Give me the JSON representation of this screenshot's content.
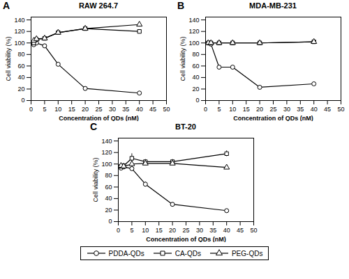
{
  "chart_data": [
    {
      "type": "line",
      "title": "RAW 264.7",
      "annotations": [
        "A"
      ],
      "x": [
        1,
        2,
        5,
        10,
        20,
        40
      ],
      "series": [
        {
          "name": "PDDA-QDs",
          "color": "black",
          "marker": "circle",
          "values": [
            97,
            100,
            95,
            63,
            21,
            13
          ],
          "errors": [
            3,
            2,
            3,
            3,
            2,
            1
          ]
        },
        {
          "name": "CA-QDs",
          "color": "black",
          "marker": "square",
          "values": [
            100,
            106,
            108,
            118,
            125,
            120
          ],
          "errors": [
            2,
            3,
            3,
            4,
            3,
            3
          ]
        },
        {
          "name": "PEG-QDs",
          "color": "black",
          "marker": "triangle",
          "values": [
            104,
            107,
            108,
            118,
            125,
            132
          ],
          "errors": [
            2,
            3,
            3,
            4,
            3,
            4
          ]
        }
      ],
      "xlabel": "Concentration of QDs (nM)",
      "ylabel": "Cell viability (%)",
      "xlim": [
        0,
        50
      ],
      "ylim": [
        0,
        145
      ],
      "xticks": [
        0,
        5,
        10,
        15,
        20,
        25,
        30,
        35,
        40,
        45,
        50
      ],
      "yticks": [
        0,
        20,
        40,
        60,
        80,
        100,
        120,
        140
      ]
    },
    {
      "type": "line",
      "title": "MDA-MB-231",
      "annotations": [
        "B"
      ],
      "x": [
        1,
        2,
        5,
        10,
        20,
        40
      ],
      "series": [
        {
          "name": "PDDA-QDs",
          "color": "black",
          "marker": "circle",
          "values": [
            100,
            98,
            58,
            58,
            23,
            29
          ],
          "errors": [
            2,
            2,
            3,
            3,
            2,
            3
          ]
        },
        {
          "name": "CA-QDs",
          "color": "black",
          "marker": "square",
          "values": [
            100,
            100,
            100,
            100,
            100,
            102
          ],
          "errors": [
            2,
            2,
            2,
            2,
            2,
            2
          ]
        },
        {
          "name": "PEG-QDs",
          "color": "black",
          "marker": "triangle",
          "values": [
            100,
            100,
            100,
            100,
            100,
            102
          ],
          "errors": [
            2,
            2,
            2,
            2,
            2,
            2
          ]
        }
      ],
      "xlabel": "Concentration of QDs (nM)",
      "ylabel": "Cell viability (%)",
      "xlim": [
        0,
        50
      ],
      "ylim": [
        0,
        145
      ],
      "xticks": [
        0,
        5,
        10,
        15,
        20,
        25,
        30,
        35,
        40,
        45,
        50
      ],
      "yticks": [
        0,
        20,
        40,
        60,
        80,
        100,
        120,
        140
      ]
    },
    {
      "type": "line",
      "title": "BT-20",
      "annotations": [
        "C"
      ],
      "x": [
        1,
        2,
        5,
        10,
        20,
        40
      ],
      "series": [
        {
          "name": "PDDA-QDs",
          "color": "black",
          "marker": "circle",
          "values": [
            93,
            95,
            92,
            65,
            30,
            19
          ],
          "errors": [
            3,
            3,
            3,
            4,
            3,
            2
          ]
        },
        {
          "name": "CA-QDs",
          "color": "black",
          "marker": "square",
          "values": [
            96,
            97,
            110,
            104,
            104,
            118
          ],
          "errors": [
            3,
            3,
            8,
            4,
            4,
            5
          ]
        },
        {
          "name": "PEG-QDs",
          "color": "black",
          "marker": "triangle",
          "values": [
            97,
            96,
            100,
            101,
            101,
            94
          ],
          "errors": [
            3,
            3,
            3,
            3,
            3,
            3
          ]
        }
      ],
      "xlabel": "Concentration of QDs (nM)",
      "ylabel": "Cell viability (%)",
      "xlim": [
        0,
        50
      ],
      "ylim": [
        0,
        145
      ],
      "xticks": [
        0,
        5,
        10,
        15,
        20,
        25,
        30,
        35,
        40,
        45,
        50
      ],
      "yticks": [
        0,
        20,
        40,
        60,
        80,
        100,
        120,
        140
      ],
      "legend": "bottom"
    }
  ]
}
